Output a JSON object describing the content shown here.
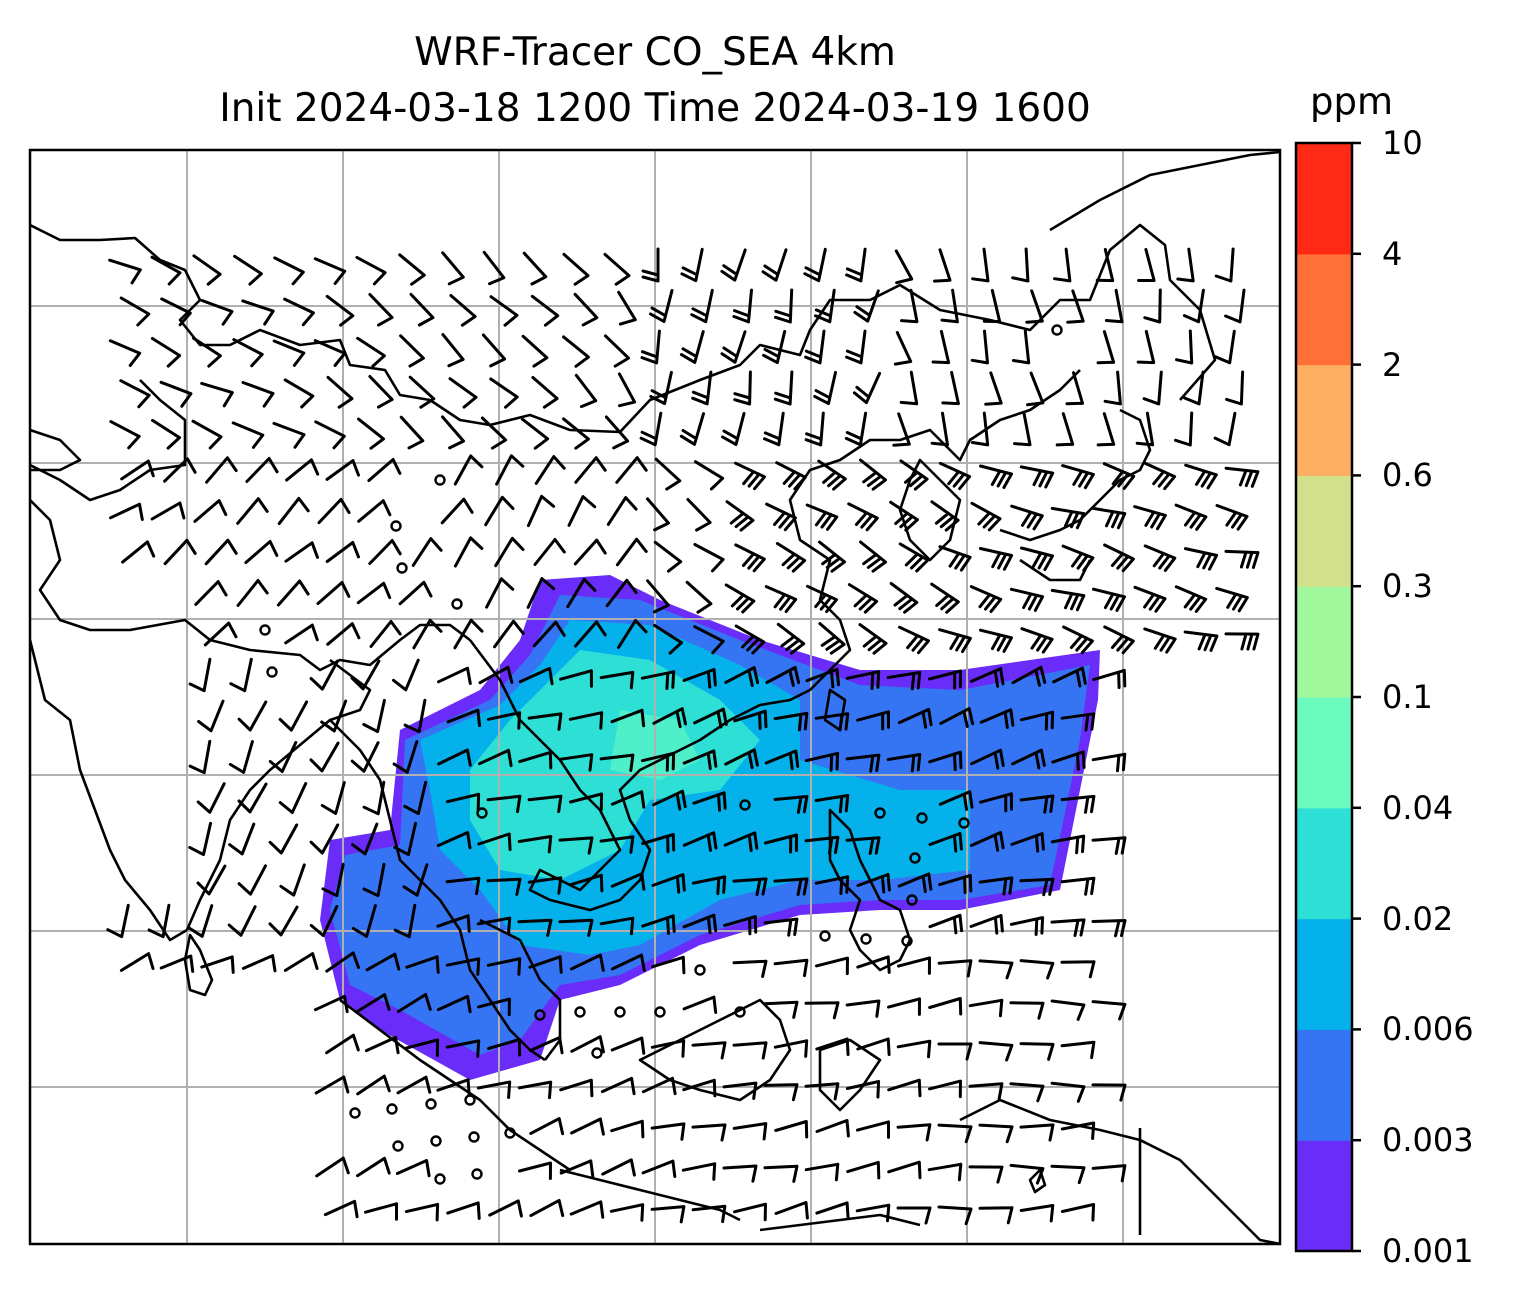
{
  "title": {
    "line1": "WRF-Tracer CO_SEA 4km",
    "line2": "Init 2024-03-18 1200 Time 2024-03-19 1600"
  },
  "colorbar": {
    "unit": "ppm",
    "ticks": [
      "0.001",
      "0.003",
      "0.006",
      "0.02",
      "0.04",
      "0.1",
      "0.3",
      "0.6",
      "2",
      "4",
      "10"
    ],
    "colors": [
      "#6a2cf8",
      "#3574f3",
      "#05b1ea",
      "#2edfd5",
      "#6bfbbf",
      "#a1f79c",
      "#d2e08b",
      "#fcae62",
      "#ff7038",
      "#ff2a15"
    ]
  },
  "map": {
    "gridlines": true,
    "land_outline_color": "#000000",
    "grid_color": "#b0b0b0"
  }
}
